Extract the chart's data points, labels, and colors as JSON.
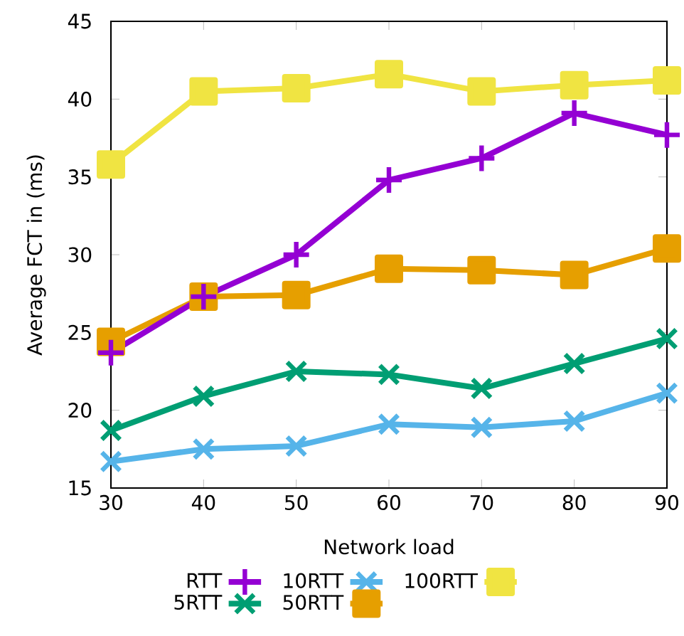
{
  "chart_data": {
    "type": "line",
    "xlabel": "Network load",
    "ylabel": "Average FCT in (ms)",
    "x": [
      30,
      40,
      50,
      60,
      70,
      80,
      90
    ],
    "xlim": [
      30,
      90
    ],
    "xticks": [
      30,
      40,
      50,
      60,
      70,
      80,
      90
    ],
    "ylim": [
      15,
      45
    ],
    "yticks": [
      15,
      20,
      25,
      30,
      35,
      40,
      45
    ],
    "grid": false,
    "legend": "bottom",
    "line_style": "solid",
    "series": [
      {
        "name": "RTT",
        "color": "#9400d3",
        "marker": "plus",
        "values": [
          23.7,
          27.3,
          30.0,
          34.8,
          36.2,
          39.1,
          37.7
        ]
      },
      {
        "name": "10RTT",
        "color": "#56b4e9",
        "marker": "cross",
        "values": [
          16.7,
          17.5,
          17.7,
          19.1,
          18.9,
          19.3,
          21.1
        ]
      },
      {
        "name": "100RTT",
        "color": "#f0e442",
        "marker": "square",
        "values": [
          35.8,
          40.5,
          40.7,
          41.6,
          40.5,
          40.9,
          41.2
        ]
      },
      {
        "name": "5RTT",
        "color": "#009e73",
        "marker": "cross",
        "values": [
          18.7,
          20.9,
          22.5,
          22.3,
          21.4,
          23.0,
          24.6
        ]
      },
      {
        "name": "50RTT",
        "color": "#e69f00",
        "marker": "square",
        "values": [
          24.4,
          27.3,
          27.4,
          29.1,
          29.0,
          28.7,
          30.4
        ]
      }
    ]
  }
}
